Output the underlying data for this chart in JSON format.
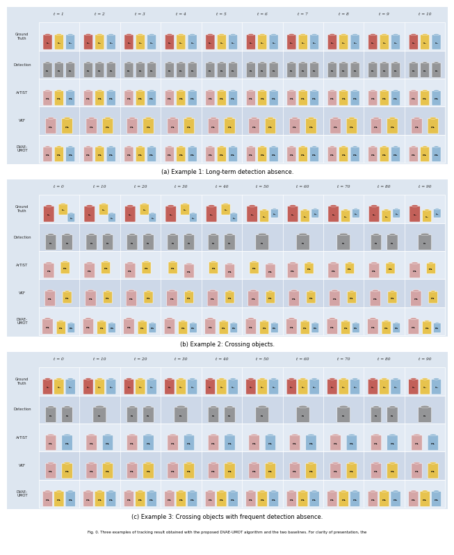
{
  "figure_title": "Fig. 0. Three examples of tracking result obtained with the proposed DVAE-UMOT algorithm and the two baselines. For clarity of presentation, the",
  "subtitle_a": "(a) Example 1: Long-term detection absence.",
  "subtitle_b": "(b) Example 2: Crossing objects.",
  "subtitle_c": "(c) Example 3: Crossing objects with frequent detection absence.",
  "row_labels_1": [
    "Ground\nTruth",
    "Detection",
    "ArTIST",
    "VKF",
    "DVAE-\nUMOT"
  ],
  "row_labels_2": [
    "Ground\nTruth",
    "Detection",
    "ArTIST",
    "VKF",
    "DVAE-\nUMOT"
  ],
  "row_labels_3": [
    "Ground\nTruth",
    "Detection",
    "ArTIST",
    "VKF",
    "DVAE-\nUMOT"
  ],
  "example1_cols": [
    "t = 1",
    "t = 2",
    "t = 3",
    "t = 4",
    "t = 5",
    "t = 6",
    "t = 7",
    "t = 8",
    "t = 9",
    "t = 10"
  ],
  "example23_cols": [
    "t = 0",
    "t = 10",
    "t = 20",
    "t = 30",
    "t = 40",
    "t = 50",
    "t = 60",
    "t = 70",
    "t = 80",
    "t = 90"
  ],
  "bg_color": "#dde6f0",
  "fig_bg": "#ffffff",
  "row_bg_even": "#e2eaf4",
  "row_bg_odd": "#cdd8e8",
  "colors": {
    "red": "#c0544c",
    "blue": "#8ab4d4",
    "yellow": "#e8c040",
    "gray": "#909090",
    "pink": "#d4a0a0",
    "orange": "#d4844c"
  }
}
